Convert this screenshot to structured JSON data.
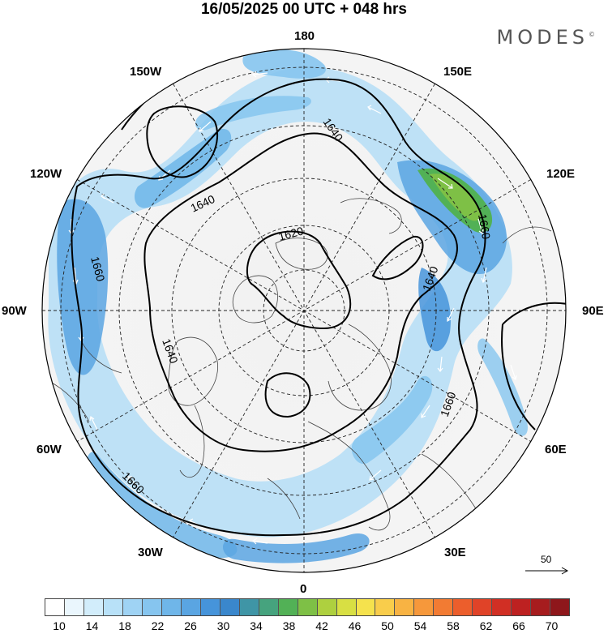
{
  "title": "16/05/2025  00 UTC  + 048 hrs",
  "logo": "MODES",
  "logo_mark": "©",
  "longitude_labels": {
    "top": "180",
    "bottom": "0",
    "left": "90W",
    "right": "90E",
    "upper_left_1": "150W",
    "upper_left_2": "120W",
    "upper_right_1": "150E",
    "upper_right_2": "120E",
    "lower_left_1": "60W",
    "lower_left_2": "30W",
    "lower_right_1": "60E",
    "lower_right_2": "30E"
  },
  "contour_labels": {
    "c1620": "1620",
    "c1640_a": "1640",
    "c1640_b": "1640",
    "c1640_c": "1640",
    "c1640_d": "1640",
    "c1660_a": "1660",
    "c1660_b": "1660",
    "c1660_c": "1660",
    "c1660_d": "1660"
  },
  "wind_reference_value": "50",
  "colorbar": {
    "colors": [
      "#ffffff",
      "#eaf6fd",
      "#d2edfb",
      "#b8e1f8",
      "#9fd3f4",
      "#86c5ef",
      "#6fb6e9",
      "#5aa5e2",
      "#4694da",
      "#3a87cc",
      "#3f95a6",
      "#46a37e",
      "#52b156",
      "#7ec046",
      "#aed03f",
      "#d8df43",
      "#f5e24d",
      "#f9cd4b",
      "#f8b343",
      "#f6983b",
      "#f27b33",
      "#ec5e2c",
      "#e04328",
      "#d12f24",
      "#bd2121",
      "#a61c1e",
      "#8e171b"
    ],
    "labels": [
      "10",
      "14",
      "18",
      "22",
      "26",
      "30",
      "34",
      "38",
      "42",
      "46",
      "50",
      "54",
      "58",
      "62",
      "66",
      "70"
    ]
  }
}
